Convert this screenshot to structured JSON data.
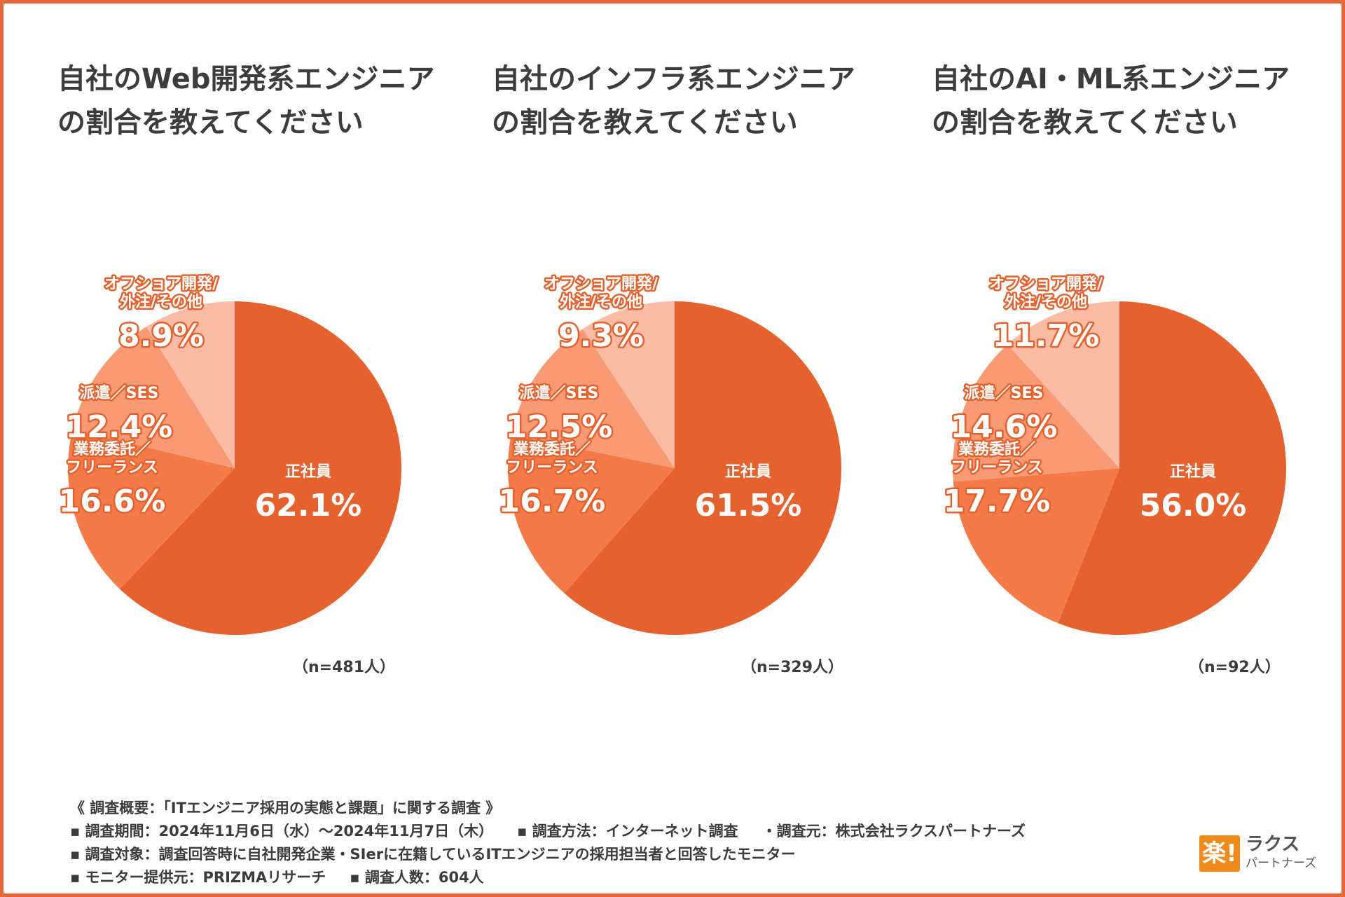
{
  "chart_data": [
    {
      "type": "pie",
      "title_lines": [
        "自社のWeb開発系エンジニア",
        "の割合を教えてください"
      ],
      "n_label": "（n=481人）",
      "slices": [
        {
          "label_lines": [
            "正社員"
          ],
          "value": 62.1,
          "display": "62.1%",
          "color": "#e5622f"
        },
        {
          "label_lines": [
            "業務委託／",
            "フリーランス"
          ],
          "value": 16.6,
          "display": "16.6%",
          "color": "#f47a48"
        },
        {
          "label_lines": [
            "派遣／SES"
          ],
          "value": 12.4,
          "display": "12.4%",
          "color": "#f89a74"
        },
        {
          "label_lines": [
            "オフショア開発/",
            "外注/その他"
          ],
          "value": 8.9,
          "display": "8.9%",
          "color": "#fbbba4"
        }
      ]
    },
    {
      "type": "pie",
      "title_lines": [
        "自社のインフラ系エンジニア",
        "の割合を教えてください"
      ],
      "n_label": "（n=329人）",
      "slices": [
        {
          "label_lines": [
            "正社員"
          ],
          "value": 61.5,
          "display": "61.5%",
          "color": "#e5622f"
        },
        {
          "label_lines": [
            "業務委託／",
            "フリーランス"
          ],
          "value": 16.7,
          "display": "16.7%",
          "color": "#f47a48"
        },
        {
          "label_lines": [
            "派遣／SES"
          ],
          "value": 12.5,
          "display": "12.5%",
          "color": "#f89a74"
        },
        {
          "label_lines": [
            "オフショア開発/",
            "外注/その他"
          ],
          "value": 9.3,
          "display": "9.3%",
          "color": "#fbbba4"
        }
      ]
    },
    {
      "type": "pie",
      "title_lines": [
        "自社のAI・ML系エンジニア",
        "の割合を教えてください"
      ],
      "n_label": "（n=92人）",
      "slices": [
        {
          "label_lines": [
            "正社員"
          ],
          "value": 56.0,
          "display": "56.0%",
          "color": "#e5622f"
        },
        {
          "label_lines": [
            "業務委託／",
            "フリーランス"
          ],
          "value": 17.7,
          "display": "17.7%",
          "color": "#f47a48"
        },
        {
          "label_lines": [
            "派遣／SES"
          ],
          "value": 14.6,
          "display": "14.6%",
          "color": "#f89a74"
        },
        {
          "label_lines": [
            "オフショア開発/",
            "外注/その他"
          ],
          "value": 11.7,
          "display": "11.7%",
          "color": "#fbbba4"
        }
      ]
    }
  ],
  "survey": {
    "heading": "《 調査概要：「ITエンジニア採用の実態と課題」に関する調査 》",
    "period": "▪ 調査期間：2024年11月6日（水）～2024年11月7日（木）",
    "method": "▪ 調査方法：インターネット調査",
    "organizer": "・調査元：株式会社ラクスパートナーズ",
    "target": "▪ 調査対象：調査回答時に自社開発企業・SIerに在籍しているITエンジニアの採用担当者と回答したモニター",
    "provider": "▪ モニター提供元：PRIZMAリサーチ",
    "respondents": "▪ 調査人数：604人"
  },
  "logo": {
    "mark": "楽!",
    "name": "ラクス",
    "sub": "パートナーズ"
  },
  "colors": {
    "frame": "#e8643a",
    "main_slice": "#e5622f",
    "outline_label": "#e5622f"
  }
}
